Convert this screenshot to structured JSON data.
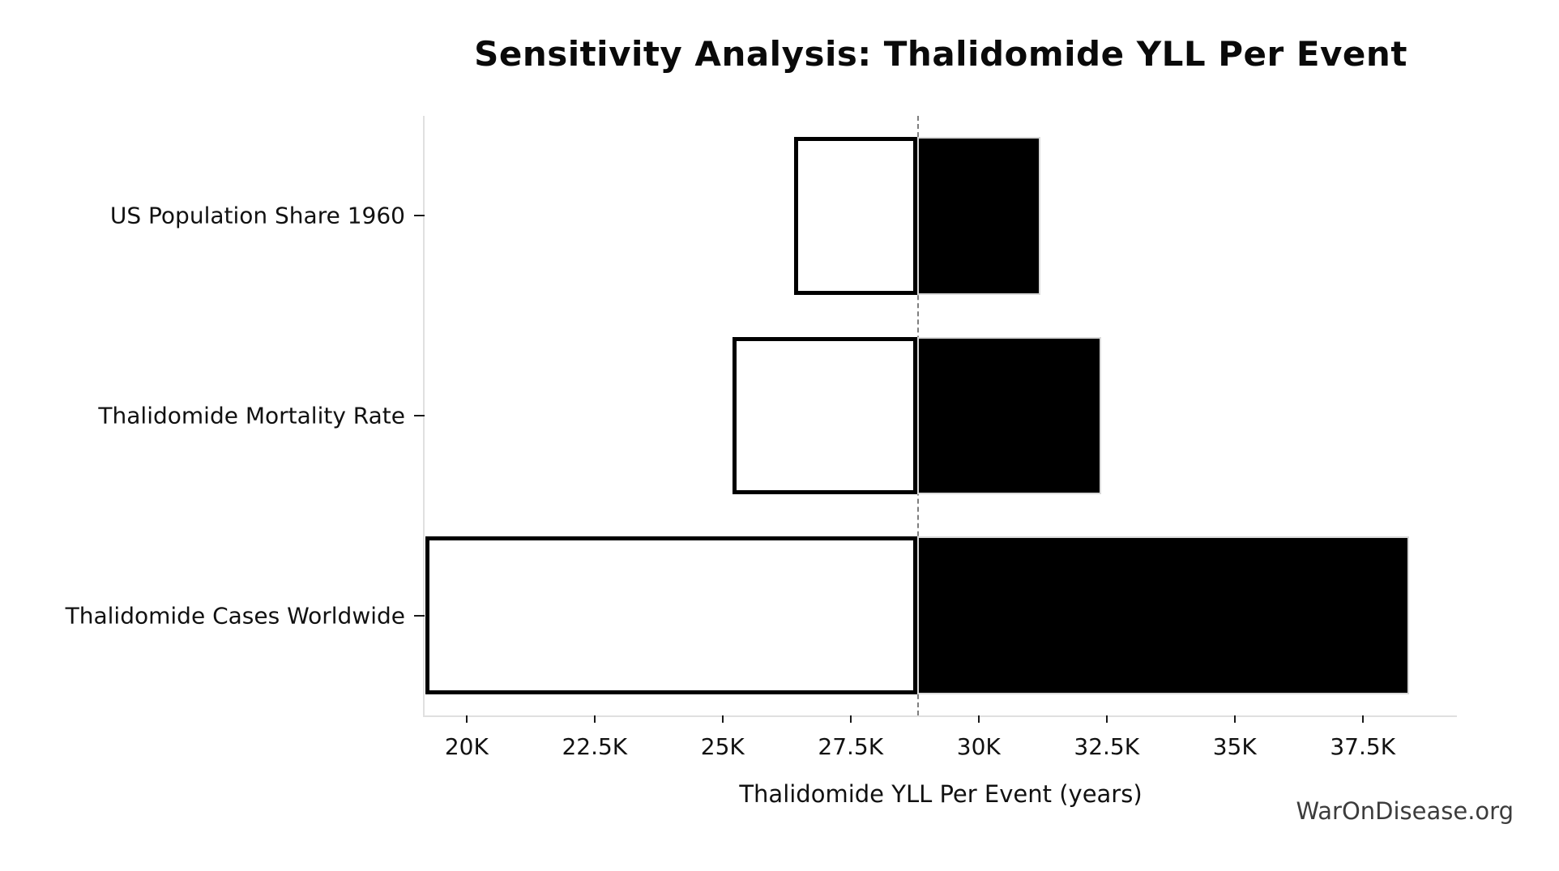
{
  "watermark": {
    "text": "WarOnDisease.org"
  },
  "chart_data": {
    "type": "bar",
    "subtype": "tornado-sensitivity",
    "orientation": "horizontal",
    "title": "Sensitivity Analysis: Thalidomide YLL Per Event",
    "xlabel": "Thalidomide YLL Per Event (years)",
    "ylabel": "",
    "categories": [
      "US Population Share 1960",
      "Thalidomide Mortality Rate",
      "Thalidomide Cases Worldwide"
    ],
    "baseline": 28800,
    "series": [
      {
        "name": "low",
        "values": [
          26400,
          25200,
          19200
        ]
      },
      {
        "name": "high",
        "values": [
          31200,
          32400,
          38400
        ]
      }
    ],
    "xlim": [
      19180,
      39340
    ],
    "x_ticks": [
      20000,
      22500,
      25000,
      27500,
      30000,
      32500,
      35000,
      37500
    ],
    "x_tick_labels": [
      "20K",
      "22.5K",
      "25K",
      "27.5K",
      "30K",
      "32.5K",
      "35K",
      "37.5K"
    ],
    "grid": false,
    "legend": "none",
    "colors": {
      "low_bar_fill": "#ffffff",
      "low_bar_border": "#000000",
      "high_bar_fill": "#000000",
      "baseline_line": "#7f7f7f",
      "axis_spine": "#e0e0e0",
      "tick_mark": "#1a1a1a",
      "text": "#111111",
      "watermark_text": "#3c3c3c"
    }
  }
}
